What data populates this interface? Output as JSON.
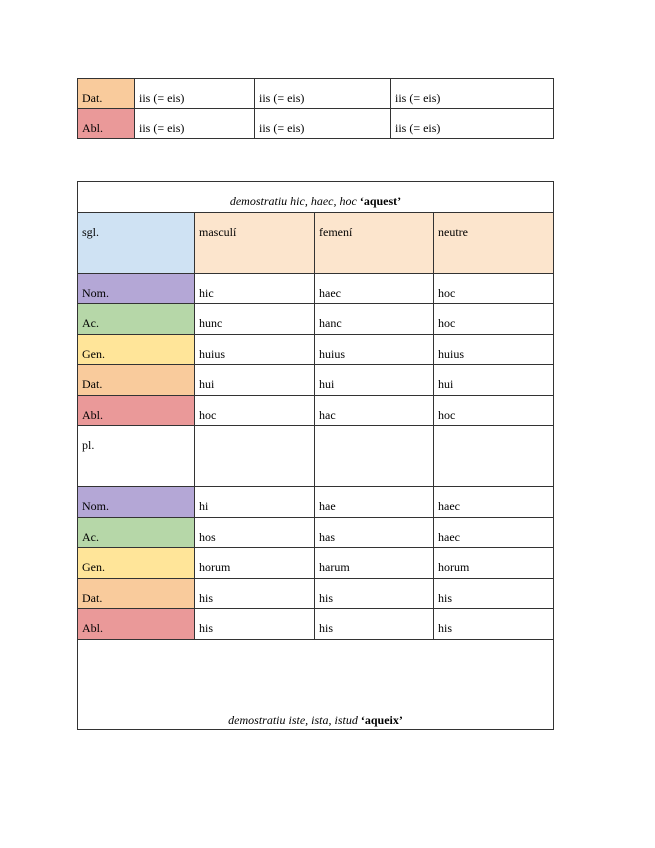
{
  "table1": {
    "rows": [
      {
        "case": "Dat.",
        "color": "#f9cb9c",
        "cells": [
          "iis (= eis)",
          "iis (= eis)",
          "iis (= eis)"
        ]
      },
      {
        "case": "Abl.",
        "color": "#ea9999",
        "cells": [
          "iis (= eis)",
          "iis (= eis)",
          "iis (= eis)"
        ]
      }
    ]
  },
  "table2": {
    "title_italic": "demostratiu hic, haec, hoc",
    "title_bold": "‘aquest’",
    "header": {
      "number": "sgl.",
      "cols": [
        "masculí",
        "femení",
        "neutre"
      ]
    },
    "singular": [
      {
        "case": "Nom.",
        "cells": [
          "hic",
          "haec",
          "hoc"
        ]
      },
      {
        "case": "Ac.",
        "cells": [
          "hunc",
          "hanc",
          "hoc"
        ]
      },
      {
        "case": "Gen.",
        "cells": [
          "huius",
          "huius",
          "huius"
        ]
      },
      {
        "case": "Dat.",
        "cells": [
          "hui",
          "hui",
          "hui"
        ]
      },
      {
        "case": "Abl.",
        "cells": [
          "hoc",
          "hac",
          "hoc"
        ]
      }
    ],
    "plural_label": "pl.",
    "plural": [
      {
        "case": "Nom.",
        "cells": [
          "hi",
          "hae",
          "haec"
        ]
      },
      {
        "case": "Ac.",
        "cells": [
          "hos",
          "has",
          "haec"
        ]
      },
      {
        "case": "Gen.",
        "cells": [
          "horum",
          "harum",
          "horum"
        ]
      },
      {
        "case": "Dat.",
        "cells": [
          "his",
          "his",
          "his"
        ]
      },
      {
        "case": "Abl.",
        "cells": [
          "his",
          "his",
          "his"
        ]
      }
    ],
    "next_title_italic": "demostratiu iste, ista, istud",
    "next_title_bold": "‘aqueix’"
  },
  "case_colors": {
    "Nom.": "#b4a7d6",
    "Ac.": "#b6d7a8",
    "Gen.": "#ffe599",
    "Dat.": "#f9cb9c",
    "Abl.": "#ea9999",
    "sgl": "#cfe2f3",
    "header": "#fce5cd"
  }
}
